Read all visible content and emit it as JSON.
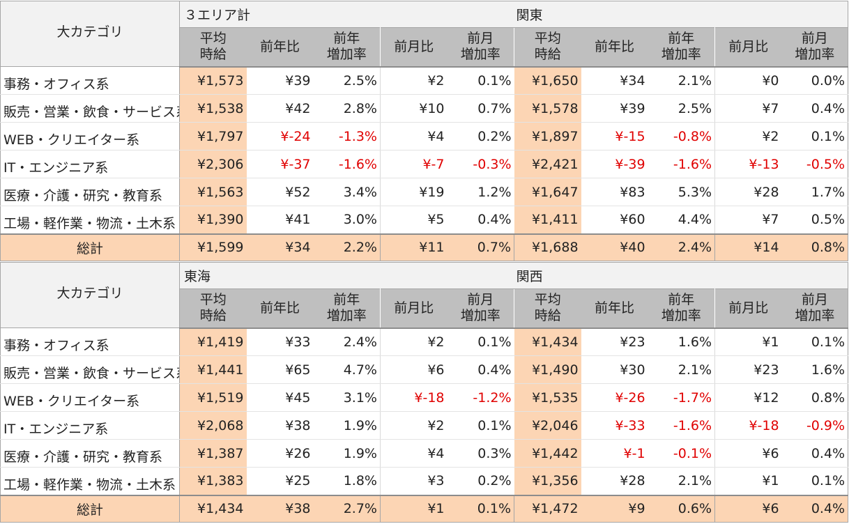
{
  "category_header": "大カテゴリ",
  "sub_headers": [
    "平均\n時給",
    "前年比",
    "前年\n増加率",
    "前月比",
    "前月\n増加率"
  ],
  "categories": [
    "事務・オフィス系",
    "販売・営業・飲食・サービス系",
    "WEB・クリエイター系",
    "IT・エンジニア系",
    "医療・介護・研究・教育系",
    "工場・軽作業・物流・土木系"
  ],
  "total_label": "総計",
  "blocks": [
    {
      "regions": [
        "３エリア計",
        "関東"
      ],
      "rows": [
        [
          "¥1,573",
          "¥39",
          "2.5%",
          "¥2",
          "0.1%",
          "¥1,650",
          "¥34",
          "2.1%",
          "¥0",
          "0.0%"
        ],
        [
          "¥1,538",
          "¥42",
          "2.8%",
          "¥10",
          "0.7%",
          "¥1,578",
          "¥39",
          "2.5%",
          "¥7",
          "0.4%"
        ],
        [
          "¥1,797",
          "¥-24",
          "-1.3%",
          "¥4",
          "0.2%",
          "¥1,897",
          "¥-15",
          "-0.8%",
          "¥2",
          "0.1%"
        ],
        [
          "¥2,306",
          "¥-37",
          "-1.6%",
          "¥-7",
          "-0.3%",
          "¥2,421",
          "¥-39",
          "-1.6%",
          "¥-13",
          "-0.5%"
        ],
        [
          "¥1,563",
          "¥52",
          "3.4%",
          "¥19",
          "1.2%",
          "¥1,647",
          "¥83",
          "5.3%",
          "¥28",
          "1.7%"
        ],
        [
          "¥1,390",
          "¥41",
          "3.0%",
          "¥5",
          "0.4%",
          "¥1,411",
          "¥60",
          "4.4%",
          "¥7",
          "0.5%"
        ]
      ],
      "total": [
        "¥1,599",
        "¥34",
        "2.2%",
        "¥11",
        "0.7%",
        "¥1,688",
        "¥40",
        "2.4%",
        "¥14",
        "0.8%"
      ]
    },
    {
      "regions": [
        "東海",
        "関西"
      ],
      "rows": [
        [
          "¥1,419",
          "¥33",
          "2.4%",
          "¥2",
          "0.1%",
          "¥1,434",
          "¥23",
          "1.6%",
          "¥1",
          "0.1%"
        ],
        [
          "¥1,441",
          "¥65",
          "4.7%",
          "¥6",
          "0.4%",
          "¥1,490",
          "¥30",
          "2.1%",
          "¥23",
          "1.6%"
        ],
        [
          "¥1,519",
          "¥45",
          "3.1%",
          "¥-18",
          "-1.2%",
          "¥1,535",
          "¥-26",
          "-1.7%",
          "¥12",
          "0.8%"
        ],
        [
          "¥2,068",
          "¥38",
          "1.9%",
          "¥2",
          "0.1%",
          "¥2,046",
          "¥-33",
          "-1.6%",
          "¥-18",
          "-0.9%"
        ],
        [
          "¥1,387",
          "¥26",
          "1.9%",
          "¥4",
          "0.3%",
          "¥1,442",
          "¥-1",
          "-0.1%",
          "¥6",
          "0.4%"
        ],
        [
          "¥1,383",
          "¥25",
          "1.8%",
          "¥3",
          "0.2%",
          "¥1,356",
          "¥28",
          "2.1%",
          "¥1",
          "0.1%"
        ]
      ],
      "total": [
        "¥1,434",
        "¥38",
        "2.7%",
        "¥1",
        "0.1%",
        "¥1,472",
        "¥9",
        "0.6%",
        "¥6",
        "0.4%"
      ]
    }
  ],
  "colors": {
    "header_bg": "#f2f2f2",
    "subheader_bg": "#bfbfbf",
    "highlight_bg": "#fcd5b4",
    "negative_text": "#e00000"
  }
}
